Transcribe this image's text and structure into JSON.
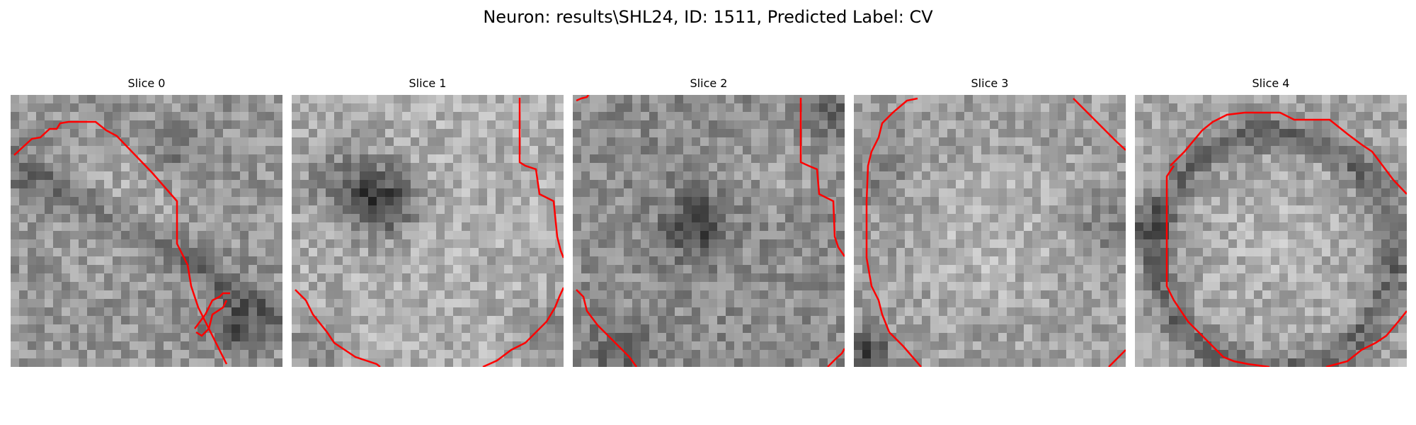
{
  "figure": {
    "title": "Neuron: results\\SHL24, ID: 1511, Predicted Label: CV"
  },
  "panels": [
    {
      "label": "Slice 0"
    },
    {
      "label": "Slice 1"
    },
    {
      "label": "Slice 2"
    },
    {
      "label": "Slice 3"
    },
    {
      "label": "Slice 4"
    }
  ],
  "colors": {
    "contour": "#ff0000",
    "background": "#ffffff"
  }
}
